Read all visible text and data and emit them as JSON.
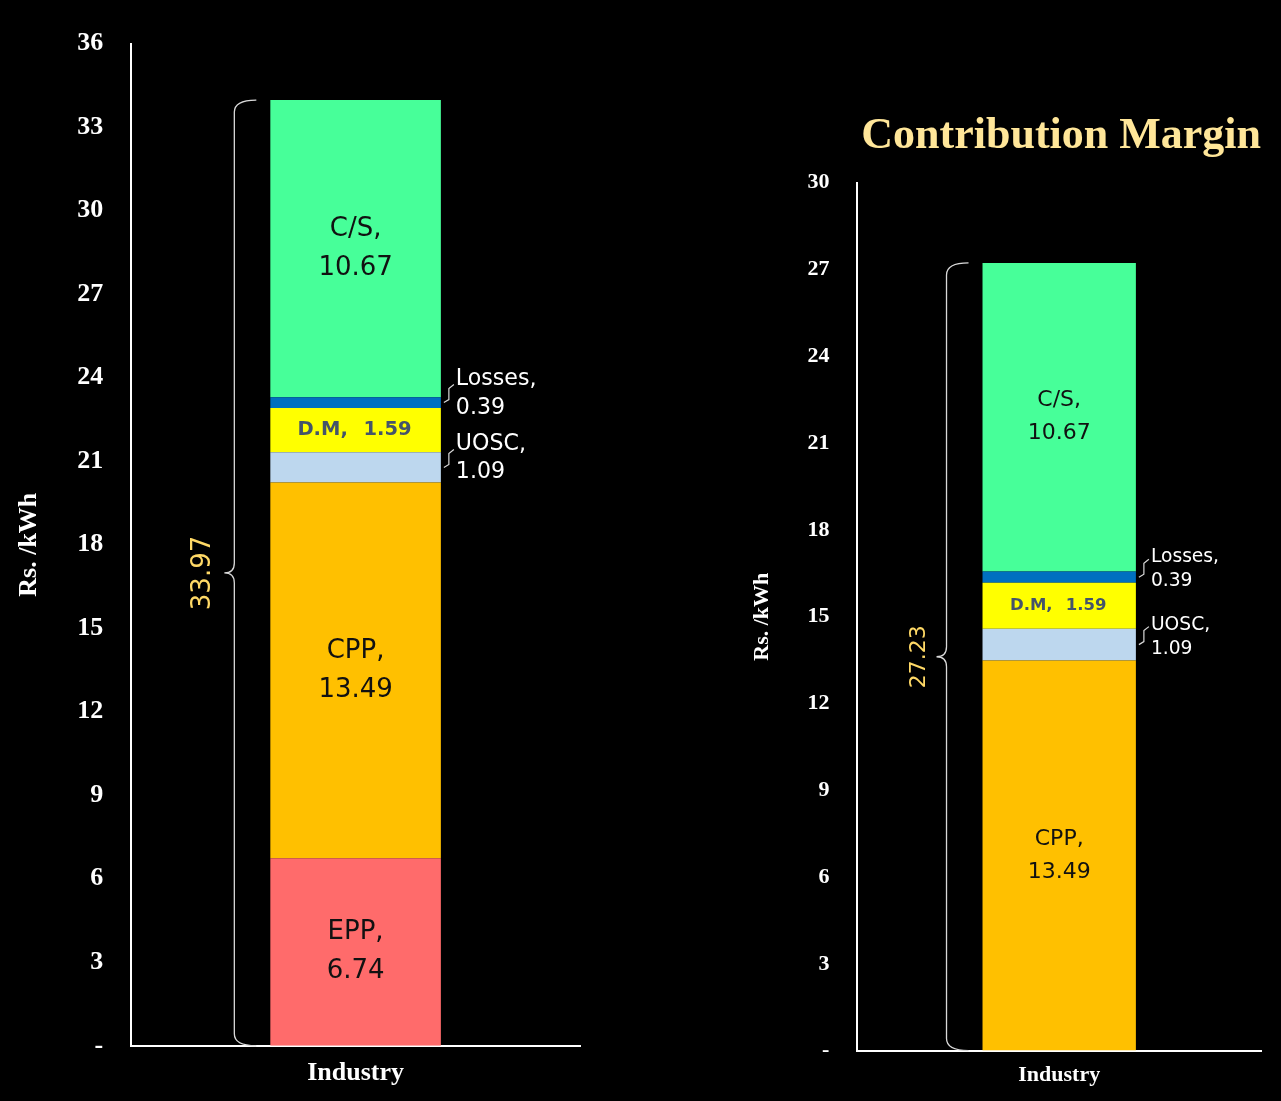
{
  "chart_data": [
    {
      "type": "bar",
      "stacked": true,
      "categories": [
        "Industry"
      ],
      "ylabel": "Rs. /kWh",
      "ylim": [
        0,
        36
      ],
      "yticks": [
        {
          "value": 0,
          "label": "-"
        },
        3,
        6,
        9,
        12,
        15,
        18,
        21,
        24,
        27,
        30,
        33,
        36
      ],
      "data_labels": true,
      "totals": [
        "33.97"
      ],
      "series": [
        {
          "name": "EPP,",
          "color": "#ff6b6b",
          "values": [
            6.74
          ]
        },
        {
          "name": "CPP,",
          "color": "#ffc000",
          "values": [
            13.49
          ]
        },
        {
          "name": "UOSC,",
          "color": "#bdd7ee",
          "values": [
            1.09
          ]
        },
        {
          "name": "D.M,",
          "color": "#ffff00",
          "values": [
            1.59
          ]
        },
        {
          "name": "Losses,",
          "color": "#0070c0",
          "values": [
            0.39
          ]
        },
        {
          "name": "C/S,",
          "color": "#47ff99",
          "values": [
            10.67
          ]
        }
      ]
    },
    {
      "type": "bar",
      "stacked": true,
      "title": "Contribution Margin",
      "categories": [
        "Industry"
      ],
      "ylabel": "Rs. /kWh",
      "ylim": [
        0,
        30
      ],
      "yticks": [
        {
          "value": 0,
          "label": "-"
        },
        3,
        6,
        9,
        12,
        15,
        18,
        21,
        24,
        27,
        30
      ],
      "data_labels": true,
      "totals": [
        "27.23"
      ],
      "series": [
        {
          "name": "CPP,",
          "color": "#ffc000",
          "values": [
            13.49
          ]
        },
        {
          "name": "UOSC,",
          "color": "#bdd7ee",
          "values": [
            1.09
          ]
        },
        {
          "name": "D.M,",
          "color": "#ffff00",
          "values": [
            1.59
          ]
        },
        {
          "name": "Losses,",
          "color": "#0070c0",
          "values": [
            0.39
          ]
        },
        {
          "name": "C/S,",
          "color": "#47ff99",
          "values": [
            10.67
          ]
        }
      ]
    }
  ]
}
